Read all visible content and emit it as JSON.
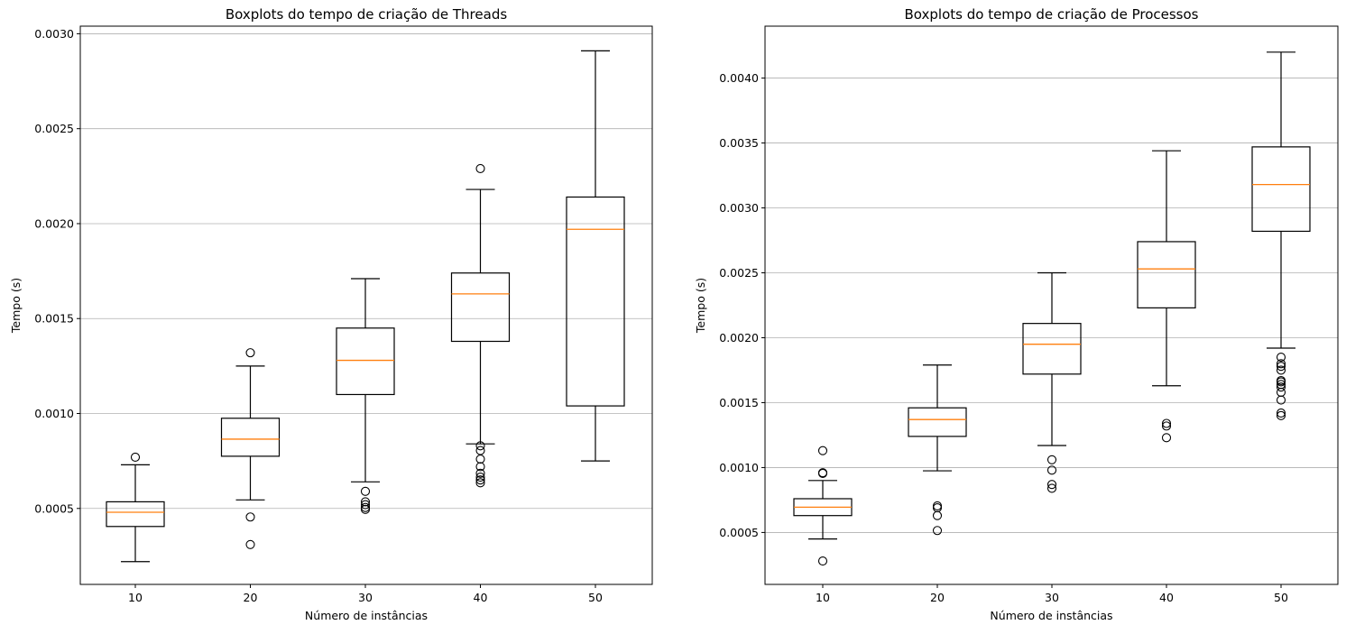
{
  "chart_data": [
    {
      "type": "boxplot",
      "title": "Boxplots do tempo de criação de Threads",
      "xlabel": "Número de instâncias",
      "ylabel": "Tempo (s)",
      "categories": [
        "10",
        "20",
        "30",
        "40",
        "50"
      ],
      "ylim": [
        0.0001,
        0.00304
      ],
      "yticks": [
        0.0005,
        0.001,
        0.0015,
        0.002,
        0.0025,
        0.003
      ],
      "ytick_labels": [
        "0.0005",
        "0.0010",
        "0.0015",
        "0.0020",
        "0.0025",
        "0.0030"
      ],
      "grid": "y",
      "median_color": "#ff7f0e",
      "boxes": [
        {
          "category": "10",
          "whisker_low": 0.00022,
          "q1": 0.000405,
          "median": 0.00048,
          "q3": 0.000535,
          "whisker_high": 0.00073,
          "outliers": [
            0.00077
          ]
        },
        {
          "category": "20",
          "whisker_low": 0.000545,
          "q1": 0.000775,
          "median": 0.000865,
          "q3": 0.000975,
          "whisker_high": 0.00125,
          "outliers": [
            0.00132,
            0.000455,
            0.00031
          ]
        },
        {
          "category": "30",
          "whisker_low": 0.00064,
          "q1": 0.0011,
          "median": 0.00128,
          "q3": 0.00145,
          "whisker_high": 0.00171,
          "outliers": [
            0.00059,
            0.000535,
            0.00052,
            0.000505,
            0.000495
          ]
        },
        {
          "category": "40",
          "whisker_low": 0.00084,
          "q1": 0.00138,
          "median": 0.00163,
          "q3": 0.00174,
          "whisker_high": 0.00218,
          "outliers": [
            0.00229,
            0.00083,
            0.000805,
            0.00076,
            0.00072,
            0.000685,
            0.000665,
            0.00065,
            0.000635
          ]
        },
        {
          "category": "50",
          "whisker_low": 0.00075,
          "q1": 0.00104,
          "median": 0.00197,
          "q3": 0.00214,
          "whisker_high": 0.00291,
          "outliers": []
        }
      ]
    },
    {
      "type": "boxplot",
      "title": "Boxplots do tempo de criação de Processos",
      "xlabel": "Número de instâncias",
      "ylabel": "Tempo (s)",
      "categories": [
        "10",
        "20",
        "30",
        "40",
        "50"
      ],
      "ylim": [
        0.0001,
        0.0044
      ],
      "yticks": [
        0.0005,
        0.001,
        0.0015,
        0.002,
        0.0025,
        0.003,
        0.0035,
        0.004
      ],
      "ytick_labels": [
        "0.0005",
        "0.0010",
        "0.0015",
        "0.0020",
        "0.0025",
        "0.0030",
        "0.0035",
        "0.0040"
      ],
      "grid": "y",
      "median_color": "#ff7f0e",
      "boxes": [
        {
          "category": "10",
          "whisker_low": 0.00045,
          "q1": 0.00063,
          "median": 0.000695,
          "q3": 0.00076,
          "whisker_high": 0.0009,
          "outliers": [
            0.00113,
            0.00096,
            0.000955,
            0.00028
          ]
        },
        {
          "category": "20",
          "whisker_low": 0.000975,
          "q1": 0.00124,
          "median": 0.00137,
          "q3": 0.00146,
          "whisker_high": 0.00179,
          "outliers": [
            0.000705,
            0.00069,
            0.00063,
            0.000515
          ]
        },
        {
          "category": "30",
          "whisker_low": 0.00117,
          "q1": 0.00172,
          "median": 0.00195,
          "q3": 0.00211,
          "whisker_high": 0.0025,
          "outliers": [
            0.00106,
            0.00098,
            0.00087,
            0.00084
          ]
        },
        {
          "category": "40",
          "whisker_low": 0.00163,
          "q1": 0.00223,
          "median": 0.00253,
          "q3": 0.00274,
          "whisker_high": 0.00344,
          "outliers": [
            0.00134,
            0.00132,
            0.00123
          ]
        },
        {
          "category": "50",
          "whisker_low": 0.00192,
          "q1": 0.00282,
          "median": 0.00318,
          "q3": 0.00347,
          "whisker_high": 0.0042,
          "outliers": [
            0.00185,
            0.0018,
            0.00178,
            0.00175,
            0.00167,
            0.00166,
            0.00164,
            0.00162,
            0.00158,
            0.00152,
            0.00142,
            0.0014
          ]
        }
      ]
    }
  ]
}
